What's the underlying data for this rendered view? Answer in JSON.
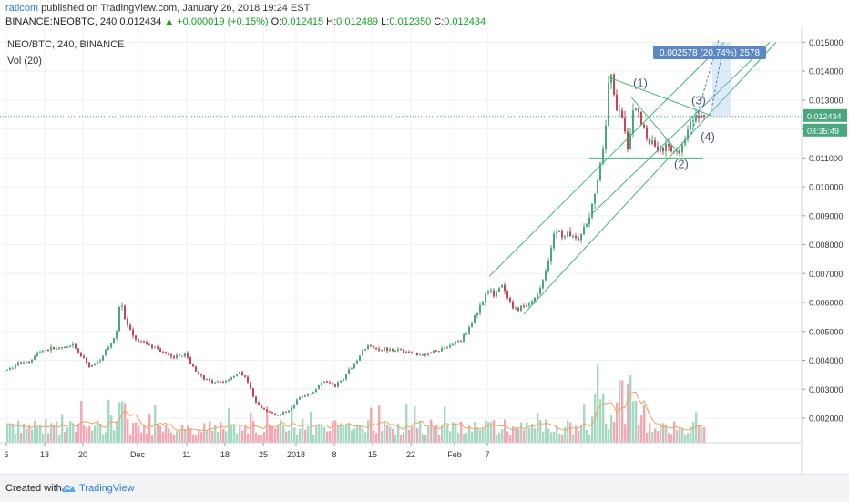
{
  "header": {
    "author": "raticom",
    "published": "published on TradingView.com, January 26, 2018 19:24 EST",
    "symbol_line": "BINANCE:NEOBTC, 240",
    "last": "0.012434",
    "change": "▲ +0.000019 (+0.15%)",
    "o_label": "O:",
    "o_val": "0.012415",
    "h_label": "H:",
    "h_val": "0.012489",
    "l_label": "L:",
    "l_val": "0.012350",
    "c_label": "C:",
    "c_val": "0.012434"
  },
  "legend": {
    "pair": "NEO/BTC, 240, BINANCE",
    "vol": "Vol (20)"
  },
  "footer": {
    "created": "Created with",
    "brand": "TradingView"
  },
  "chart_data": {
    "type": "candlestick",
    "y_scale": "linear",
    "ylim": [
      0.00115,
      0.0152
    ],
    "y_ticks": [
      "0.015000",
      "0.014000",
      "0.013000",
      "0.012000",
      "0.011000",
      "0.010000",
      "0.009000",
      "0.008000",
      "0.007000",
      "0.006000",
      "0.005000",
      "0.004000",
      "0.003000",
      "0.002000"
    ],
    "x_ticks": [
      {
        "label": "6",
        "i": 0
      },
      {
        "label": "13",
        "i": 42
      },
      {
        "label": "20",
        "i": 84
      },
      {
        "label": "Dec",
        "i": 144
      },
      {
        "label": "11",
        "i": 198
      },
      {
        "label": "18",
        "i": 240
      },
      {
        "label": "25",
        "i": 282
      },
      {
        "label": "2018",
        "i": 318
      },
      {
        "label": "8",
        "i": 360
      },
      {
        "label": "15",
        "i": 402
      },
      {
        "label": "22",
        "i": 444
      },
      {
        "label": "Feb",
        "i": 492
      },
      {
        "label": "7",
        "i": 528
      }
    ],
    "price_path": [
      [
        0,
        0.00365
      ],
      [
        12,
        0.0039
      ],
      [
        25,
        0.004
      ],
      [
        35,
        0.0043
      ],
      [
        45,
        0.0044
      ],
      [
        60,
        0.0044
      ],
      [
        72,
        0.0045
      ],
      [
        90,
        0.0038
      ],
      [
        98,
        0.0039
      ],
      [
        110,
        0.0044
      ],
      [
        120,
        0.005
      ],
      [
        124,
        0.0062
      ],
      [
        130,
        0.0053
      ],
      [
        140,
        0.0047
      ],
      [
        150,
        0.0046
      ],
      [
        165,
        0.0044
      ],
      [
        180,
        0.0041
      ],
      [
        195,
        0.0042
      ],
      [
        210,
        0.0035
      ],
      [
        225,
        0.0032
      ],
      [
        240,
        0.0033
      ],
      [
        255,
        0.0036
      ],
      [
        262,
        0.0034
      ],
      [
        272,
        0.0026
      ],
      [
        280,
        0.0023
      ],
      [
        288,
        0.0022
      ],
      [
        298,
        0.0021
      ],
      [
        310,
        0.0023
      ],
      [
        320,
        0.0027
      ],
      [
        335,
        0.0029
      ],
      [
        348,
        0.0033
      ],
      [
        360,
        0.0031
      ],
      [
        372,
        0.0035
      ],
      [
        385,
        0.0041
      ],
      [
        396,
        0.0045
      ],
      [
        408,
        0.0044
      ],
      [
        422,
        0.0044
      ],
      [
        436,
        0.0043
      ],
      [
        452,
        0.0042
      ],
      [
        470,
        0.0043
      ],
      [
        484,
        0.0045
      ],
      [
        498,
        0.0047
      ],
      [
        508,
        0.0052
      ],
      [
        518,
        0.0058
      ],
      [
        526,
        0.0064
      ],
      [
        534,
        0.0063
      ],
      [
        542,
        0.0066
      ],
      [
        548,
        0.0062
      ],
      [
        556,
        0.0057
      ],
      [
        562,
        0.0058
      ],
      [
        570,
        0.0059
      ],
      [
        578,
        0.0061
      ],
      [
        586,
        0.0066
      ],
      [
        594,
        0.0074
      ],
      [
        602,
        0.0086
      ],
      [
        610,
        0.0083
      ],
      [
        618,
        0.0084
      ],
      [
        626,
        0.0081
      ],
      [
        634,
        0.0086
      ],
      [
        642,
        0.0094
      ],
      [
        650,
        0.0106
      ],
      [
        656,
        0.0119
      ],
      [
        660,
        0.0136
      ],
      [
        664,
        0.0138
      ],
      [
        668,
        0.0124
      ],
      [
        672,
        0.0128
      ],
      [
        676,
        0.0122
      ],
      [
        680,
        0.0113
      ],
      [
        684,
        0.0118
      ],
      [
        688,
        0.0131
      ],
      [
        692,
        0.0126
      ],
      [
        698,
        0.0121
      ],
      [
        704,
        0.0116
      ],
      [
        712,
        0.0114
      ],
      [
        720,
        0.0113
      ],
      [
        728,
        0.0113
      ],
      [
        734,
        0.0111
      ],
      [
        740,
        0.0114
      ],
      [
        746,
        0.012
      ],
      [
        752,
        0.0125
      ],
      [
        758,
        0.0123
      ],
      [
        764,
        0.0124
      ],
      [
        767,
        0.01243
      ]
    ],
    "current_price": 0.012434,
    "current_price_label": "0.012434",
    "countdown_label": "03:35:49",
    "measure_label": "0.002578 (20.74%) 2578",
    "wave_labels": [
      "(1)",
      "(2)",
      "(3)",
      "(4)"
    ],
    "colors": {
      "up": "#4aa77e",
      "down": "#c54456",
      "vol_up": "#a7d8c3",
      "vol_down": "#f3a8b4",
      "vol_ma": "#f3a25b",
      "channel": "#47b37c",
      "dotted": "#4aa77e",
      "measure": "#9ec6ef",
      "measure_label_bg": "#5b87c5",
      "price_label_bg": "#4aa77e"
    }
  }
}
